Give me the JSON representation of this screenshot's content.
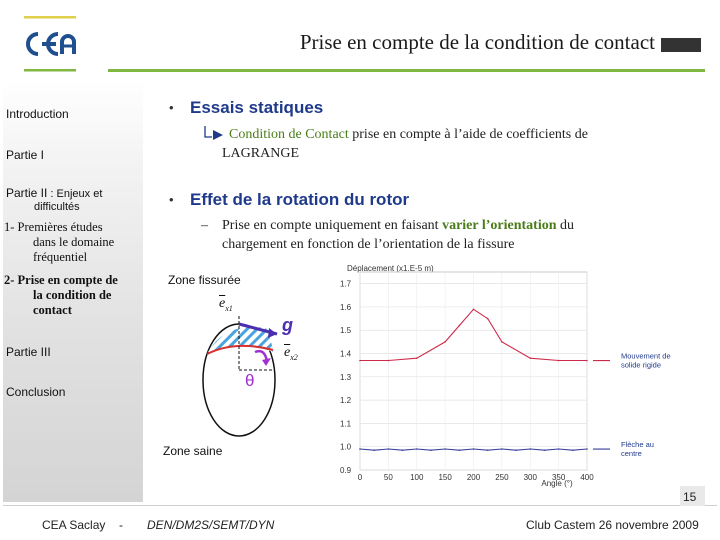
{
  "header": {
    "title": "Prise en compte de la condition de contact",
    "logo_text": "cea",
    "colors": {
      "accent_green": "#7fb740",
      "logo_blue": "#1f4f8f",
      "title_block": "#333333"
    }
  },
  "sidebar": {
    "introduction": "Introduction",
    "partie1": "Partie I",
    "partie2_label": "Partie II",
    "partie2_sub1": " : Enjeux et",
    "partie2_sub2": "difficultés",
    "item1_line1": "1- Premières études",
    "item1_line2": "dans le domaine",
    "item1_line3": "fréquentiel",
    "item2_line1": "2- Prise en compte de",
    "item2_line2": "la condition de",
    "item2_line3": "contact",
    "partie3": "Partie III",
    "conclusion": "Conclusion"
  },
  "content": {
    "bullet1_title": "Essais statiques",
    "sub1_pre": "Condition de Contact",
    "sub1_post": " prise en compte à l’aide de coefficients de",
    "sub1_line2": "LAGRANGE",
    "bullet2_title": "Effet de la rotation du rotor",
    "sub2_pre": "Prise en compte uniquement en faisant ",
    "sub2_hl": "varier l’orientation",
    "sub2_post": " du",
    "sub2_line2": "chargement en fonction de l’orientation de la fissure",
    "dash": "–",
    "bullet_glyph": "•"
  },
  "diagram": {
    "label_top": "Zone fissurée",
    "label_bottom": "Zone saine",
    "g_label": "g",
    "theta_label": "θ",
    "ex1": "e",
    "ex1_sub": "x1",
    "ex2": "e",
    "ex2_sub": "x2",
    "colors": {
      "hatch": "#4aa3e0",
      "crack_line": "#d83030",
      "g_arrow": "#4a2fb0",
      "theta_arrow": "#a030d0"
    }
  },
  "chart_data": {
    "type": "line",
    "title": "Déplacement (x1.E-5 m)",
    "xlabel": "Angle (°)",
    "ylabel": "",
    "x_ticks": [
      0,
      50,
      100,
      150,
      200,
      250,
      300,
      350,
      400
    ],
    "y_ticks": [
      0.9,
      1.0,
      1.1,
      1.2,
      1.3,
      1.4,
      1.5,
      1.6,
      1.7
    ],
    "xlim": [
      0,
      400
    ],
    "ylim": [
      0.9,
      1.75
    ],
    "grid": true,
    "legend_placement": "right",
    "series": [
      {
        "name": "Mouvement de solide rigide",
        "color": "#cc2a4a",
        "x": [
          0,
          50,
          100,
          150,
          175,
          200,
          225,
          250,
          300,
          350,
          400
        ],
        "y": [
          1.37,
          1.37,
          1.38,
          1.45,
          1.52,
          1.59,
          1.55,
          1.45,
          1.38,
          1.37,
          1.37
        ]
      },
      {
        "name": "Flèche au centre",
        "color": "#3a3f9a",
        "x": [
          0,
          25,
          50,
          75,
          100,
          125,
          150,
          175,
          200,
          225,
          250,
          275,
          300,
          325,
          350,
          375,
          400
        ],
        "y": [
          0.99,
          0.985,
          0.99,
          0.985,
          0.99,
          0.985,
          0.99,
          0.985,
          0.99,
          0.985,
          0.99,
          0.985,
          0.99,
          0.985,
          0.99,
          0.985,
          0.99
        ]
      }
    ]
  },
  "footer": {
    "org": "CEA Saclay",
    "sep": "-",
    "dept": "DEN/DM2S/SEMT/DYN",
    "event": "Club Castem 26 novembre 2009",
    "page_number": "15"
  }
}
